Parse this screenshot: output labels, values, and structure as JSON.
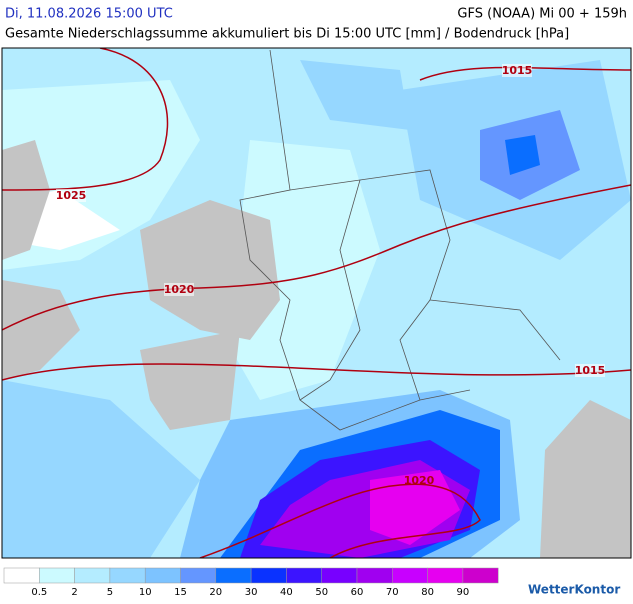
{
  "header": {
    "date": "Di, 11.08.2026 15:00 UTC",
    "model": "GFS (NOAA) Mi 00 + 159h",
    "subtitle": "Gesamte Niederschlagssumme akkumuliert bis Di 15:00 UTC [mm] / Bodendruck [hPa]"
  },
  "isobars": [
    "1015",
    "1025",
    "1020",
    "1015",
    "1020"
  ],
  "legend": {
    "labels": [
      0.5,
      2,
      5,
      10,
      15,
      20,
      30,
      40,
      50,
      60,
      70,
      80,
      90
    ],
    "colors": [
      "#ffffff",
      "#ccfaff",
      "#b4ecff",
      "#96d7ff",
      "#7dc3ff",
      "#6496ff",
      "#0a6eff",
      "#0a32ff",
      "#3c14ff",
      "#7800ff",
      "#a000f0",
      "#c800ff",
      "#e600f0",
      "#cd00cd"
    ]
  },
  "logo": "WetterKontor"
}
